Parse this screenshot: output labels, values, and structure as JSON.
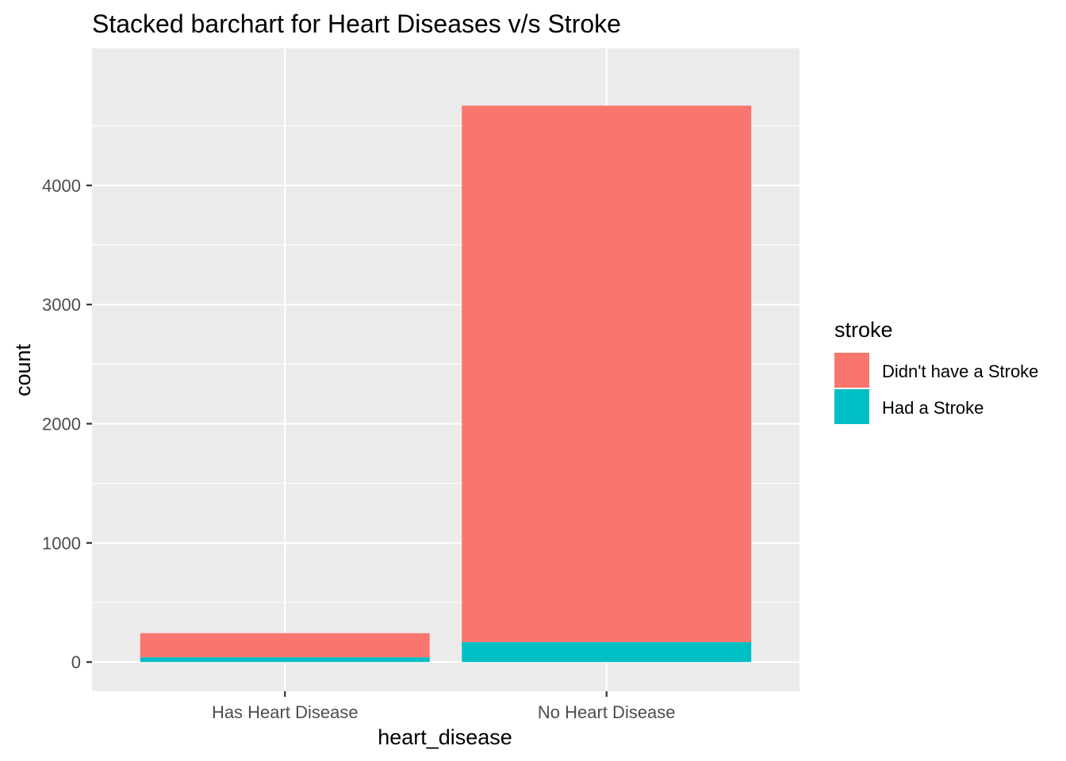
{
  "chart_data": {
    "type": "bar",
    "stacked": true,
    "title": "Stacked barchart for Heart Diseases v/s Stroke",
    "xlabel": "heart_disease",
    "ylabel": "count",
    "categories": [
      "Has Heart Disease",
      "No Heart Disease"
    ],
    "series": [
      {
        "name": "Didn't have a Stroke",
        "color": "#F8766D",
        "values": [
          202,
          4502
        ]
      },
      {
        "name": "Had a Stroke",
        "color": "#00BFC4",
        "values": [
          40,
          167
        ]
      }
    ],
    "ylim": [
      -245,
      5150
    ],
    "yticks": [
      0,
      1000,
      2000,
      3000,
      4000
    ],
    "grid": true,
    "legend": {
      "title": "stroke",
      "position": "right"
    },
    "panel_background": "#EBEBEB"
  }
}
